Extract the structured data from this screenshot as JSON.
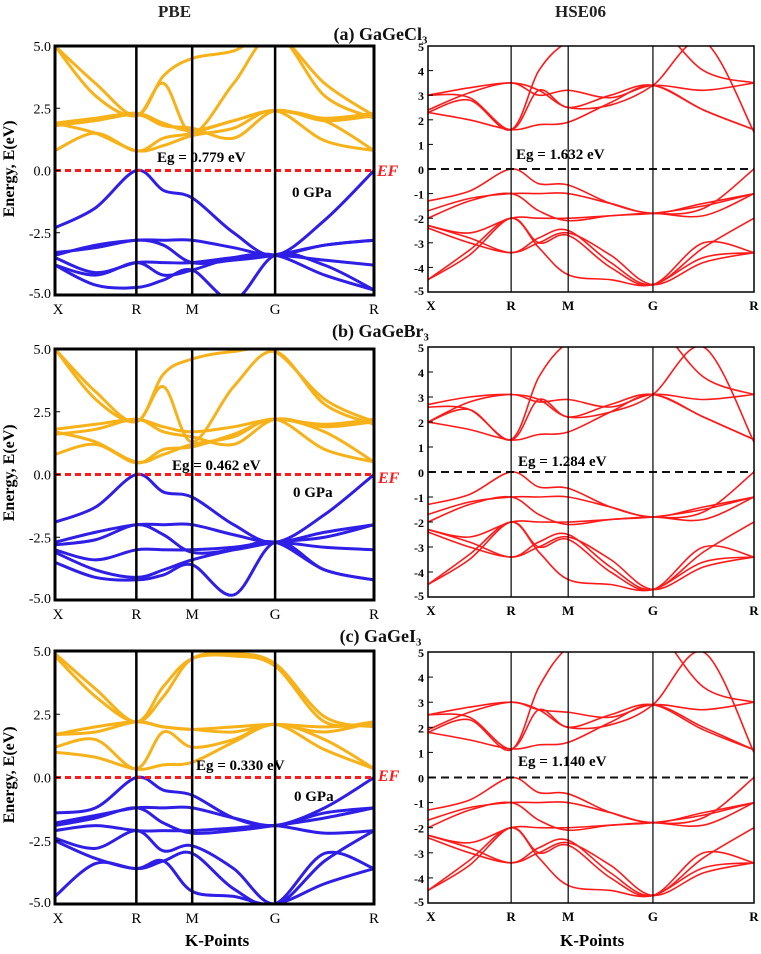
{
  "headers": {
    "pbe": "PBE",
    "hse": "HSE06"
  },
  "subtitles": [
    "(a) GaGeCl₃",
    "(b) GaGeBr₃",
    "(c) GaGeI₃"
  ],
  "ylabel": "Energy, E(eV)",
  "xlabel": "K-Points",
  "colors": {
    "pbe_cb": "#f7b21a",
    "pbe_vb": "#2f1fe6",
    "hse": "#ff1a1a",
    "fermi_pbe": "#ff1a1a",
    "fermi_hse": "#111111"
  },
  "chart_data": [
    {
      "id": "a-pbe",
      "type": "line",
      "method": "PBE",
      "ylim": [
        -5,
        5
      ],
      "yticks": [
        "5.0",
        "2.5",
        "0.0",
        "-2.5",
        "-5.0"
      ],
      "ytick_values": [
        5,
        2.5,
        0,
        -2.5,
        -5
      ],
      "kpoints": [
        "X",
        "R",
        "M",
        "G",
        "R"
      ],
      "kpos": [
        0,
        0.255,
        0.43,
        0.69,
        1
      ],
      "k": [
        0,
        0.127,
        0.255,
        0.34,
        0.43,
        0.56,
        0.69,
        0.845,
        1
      ],
      "gap_label": "Eg = 0.779 eV",
      "pressure": "0 GPa",
      "fermi_label": "EF",
      "conduction": [
        [
          0.8,
          1.5,
          0.78,
          1.3,
          1.5,
          2.0,
          2.4,
          2.0,
          0.8
        ],
        [
          1.9,
          1.5,
          0.8,
          1.0,
          1.4,
          1.7,
          2.4,
          1.2,
          0.8
        ],
        [
          1.9,
          2.1,
          2.3,
          1.9,
          1.6,
          2.0,
          2.4,
          2.1,
          2.3
        ],
        [
          1.8,
          2.0,
          2.25,
          1.8,
          1.7,
          1.3,
          2.4,
          2.0,
          2.2
        ],
        [
          5.0,
          3.5,
          2.2,
          3.8,
          4.5,
          4.8,
          5.5,
          3.5,
          2.2
        ],
        [
          5.0,
          3.0,
          2.2,
          3.5,
          1.5,
          3.5,
          5.5,
          3.0,
          2.1
        ]
      ],
      "valence": [
        [
          -2.3,
          -1.5,
          0,
          -0.8,
          -1.1,
          -2.5,
          -3.4,
          -2.0,
          0
        ],
        [
          -3.4,
          -3.0,
          -2.8,
          -2.8,
          -2.8,
          -3.1,
          -3.4,
          -3.0,
          -2.8
        ],
        [
          -3.3,
          -3.1,
          -2.8,
          -3.0,
          -3.7,
          -3.6,
          -3.4,
          -3.0,
          -2.8
        ],
        [
          -3.5,
          -4.1,
          -3.7,
          -3.7,
          -3.7,
          -3.5,
          -3.4,
          -3.6,
          -3.8
        ],
        [
          -3.8,
          -4.2,
          -3.7,
          -4.2,
          -4.0,
          -3.5,
          -3.4,
          -4.2,
          -4.8
        ],
        [
          -3.8,
          -4.6,
          -4.7,
          -4.4,
          -4.0,
          -5.2,
          -3.4,
          -3.8,
          -4.8
        ]
      ]
    },
    {
      "id": "a-hse",
      "type": "line",
      "method": "HSE06",
      "ylim": [
        -5,
        5
      ],
      "yticks": [
        "5",
        "4",
        "3",
        "2",
        "1",
        "0",
        "-1",
        "-2",
        "-3",
        "-4",
        "-5"
      ],
      "ytick_values": [
        5,
        4,
        3,
        2,
        1,
        0,
        -1,
        -2,
        -3,
        -4,
        -5
      ],
      "kpoints": [
        "X",
        "R",
        "M",
        "G",
        "R"
      ],
      "kpos": [
        0,
        0.255,
        0.43,
        0.69,
        1
      ],
      "k": [
        0,
        0.127,
        0.255,
        0.34,
        0.43,
        0.56,
        0.69,
        0.845,
        1
      ],
      "gap_label": "Eg = 1.632 eV",
      "conduction": [
        [
          2.3,
          2.0,
          1.6,
          1.8,
          1.9,
          2.7,
          3.4,
          2.4,
          1.6
        ],
        [
          3.0,
          2.9,
          1.6,
          3.2,
          2.5,
          3.0,
          3.4,
          2.4,
          1.6
        ],
        [
          2.4,
          3.1,
          3.5,
          3.0,
          3.2,
          2.9,
          3.4,
          3.2,
          3.5
        ],
        [
          3.0,
          3.3,
          3.5,
          3.2,
          2.5,
          2.6,
          3.4,
          5.2,
          1.5
        ],
        [
          2.3,
          2.8,
          1.6,
          4.0,
          5.2,
          6.0,
          6.0,
          4.0,
          3.5
        ]
      ],
      "valence": [
        [
          -1.3,
          -0.9,
          0,
          -0.6,
          -0.65,
          -1.4,
          -1.8,
          -1.6,
          0
        ],
        [
          -1.7,
          -1.2,
          -1.0,
          -1.0,
          -1.0,
          -1.4,
          -1.8,
          -1.4,
          -1.0
        ],
        [
          -2.0,
          -1.3,
          -1.0,
          -1.7,
          -2.1,
          -1.9,
          -1.8,
          -1.5,
          -1.0
        ],
        [
          -2.3,
          -2.6,
          -2.0,
          -2.0,
          -2.0,
          -1.9,
          -1.8,
          -1.9,
          -1.0
        ],
        [
          -2.3,
          -2.8,
          -3.4,
          -2.8,
          -2.5,
          -3.8,
          -4.7,
          -3.2,
          -2.0
        ],
        [
          -4.5,
          -3.5,
          -2.0,
          -3.0,
          -2.7,
          -4.0,
          -4.7,
          -3.0,
          -3.4
        ],
        [
          -4.5,
          -3.3,
          -2.0,
          -3.2,
          -4.3,
          -4.5,
          -4.7,
          -3.6,
          -3.4
        ],
        [
          -2.4,
          -3.0,
          -3.4,
          -3.0,
          -2.6,
          -3.5,
          -4.7,
          -3.8,
          -3.4
        ]
      ]
    },
    {
      "id": "b-pbe",
      "type": "line",
      "method": "PBE",
      "ylim": [
        -5,
        5
      ],
      "yticks": [
        "5.0",
        "2.5",
        "0.0",
        "-2.5",
        "-5.0"
      ],
      "ytick_values": [
        5,
        2.5,
        0,
        -2.5,
        -5
      ],
      "kpoints": [
        "X",
        "R",
        "M",
        "G",
        "R"
      ],
      "kpos": [
        0,
        0.255,
        0.43,
        0.69,
        1
      ],
      "k": [
        0,
        0.127,
        0.255,
        0.34,
        0.43,
        0.56,
        0.69,
        0.845,
        1
      ],
      "gap_label": "Eg = 0.462 eV",
      "pressure": "0 GPa",
      "fermi_label": "EF",
      "conduction": [
        [
          0.8,
          1.2,
          0.46,
          1.0,
          1.1,
          1.6,
          2.2,
          1.7,
          0.5
        ],
        [
          1.7,
          1.3,
          0.5,
          0.8,
          1.2,
          1.5,
          2.2,
          1.0,
          0.5
        ],
        [
          1.8,
          2.0,
          2.2,
          1.9,
          1.7,
          1.9,
          2.2,
          2.0,
          2.2
        ],
        [
          1.6,
          1.8,
          2.2,
          1.7,
          1.5,
          1.2,
          2.2,
          1.9,
          2.1
        ],
        [
          5.0,
          3.3,
          2.1,
          4.0,
          4.6,
          4.9,
          4.9,
          3.0,
          2.1
        ],
        [
          5.0,
          3.0,
          2.1,
          3.5,
          1.3,
          3.5,
          4.9,
          2.8,
          2.0
        ]
      ],
      "valence": [
        [
          -1.9,
          -1.3,
          0,
          -0.7,
          -0.9,
          -2.0,
          -2.7,
          -1.6,
          0
        ],
        [
          -2.7,
          -2.3,
          -2.0,
          -2.0,
          -2.0,
          -2.4,
          -2.7,
          -2.3,
          -2.0
        ],
        [
          -2.8,
          -2.6,
          -2.0,
          -2.4,
          -3.1,
          -3.0,
          -2.7,
          -2.5,
          -2.0
        ],
        [
          -3.0,
          -3.4,
          -3.0,
          -3.0,
          -3.0,
          -2.9,
          -2.7,
          -2.9,
          -3.0
        ],
        [
          -3.1,
          -3.8,
          -4.1,
          -3.8,
          -3.4,
          -3.0,
          -2.7,
          -3.8,
          -4.2
        ],
        [
          -3.5,
          -4.1,
          -4.2,
          -4.0,
          -3.6,
          -4.8,
          -2.7,
          -3.8,
          -4.2
        ]
      ]
    },
    {
      "id": "b-hse",
      "type": "line",
      "method": "HSE06",
      "ylim": [
        -5,
        5
      ],
      "yticks": [
        "5",
        "4",
        "3",
        "2",
        "1",
        "0",
        "-1",
        "-2",
        "-3",
        "-4",
        "-5"
      ],
      "ytick_values": [
        5,
        4,
        3,
        2,
        1,
        0,
        -1,
        -2,
        -3,
        -4,
        -5
      ],
      "kpoints": [
        "X",
        "R",
        "M",
        "G",
        "R"
      ],
      "kpos": [
        0,
        0.255,
        0.43,
        0.69,
        1
      ],
      "k": [
        0,
        0.127,
        0.255,
        0.34,
        0.43,
        0.56,
        0.69,
        0.845,
        1
      ],
      "gap_label": "Eg = 1.284 eV",
      "conduction": [
        [
          2.0,
          1.7,
          1.28,
          1.5,
          1.6,
          2.4,
          3.1,
          2.2,
          1.3
        ],
        [
          2.6,
          2.5,
          1.28,
          2.9,
          2.2,
          2.7,
          3.1,
          2.2,
          1.3
        ],
        [
          2.0,
          2.8,
          3.1,
          2.8,
          2.9,
          2.6,
          3.1,
          2.9,
          3.1
        ],
        [
          2.7,
          3.0,
          3.1,
          2.9,
          2.2,
          2.4,
          3.1,
          5.0,
          1.2
        ],
        [
          2.0,
          2.5,
          1.3,
          3.8,
          5.2,
          6.0,
          6.0,
          3.8,
          3.1
        ]
      ],
      "valence": [
        [
          -1.3,
          -0.9,
          0,
          -0.6,
          -0.65,
          -1.4,
          -1.8,
          -1.6,
          0
        ],
        [
          -1.7,
          -1.2,
          -1.0,
          -1.0,
          -1.0,
          -1.4,
          -1.8,
          -1.4,
          -1.0
        ],
        [
          -2.0,
          -1.3,
          -1.0,
          -1.7,
          -2.1,
          -1.9,
          -1.8,
          -1.5,
          -1.0
        ],
        [
          -2.3,
          -2.6,
          -2.0,
          -2.0,
          -2.0,
          -1.9,
          -1.8,
          -1.9,
          -1.0
        ],
        [
          -2.3,
          -2.8,
          -3.4,
          -2.8,
          -2.5,
          -3.8,
          -4.7,
          -3.2,
          -2.0
        ],
        [
          -4.5,
          -3.5,
          -2.0,
          -3.0,
          -2.7,
          -4.0,
          -4.7,
          -3.0,
          -3.4
        ],
        [
          -4.5,
          -3.3,
          -2.0,
          -3.2,
          -4.3,
          -4.5,
          -4.7,
          -3.6,
          -3.4
        ],
        [
          -2.4,
          -3.0,
          -3.4,
          -3.0,
          -2.6,
          -3.5,
          -4.7,
          -3.8,
          -3.4
        ]
      ]
    },
    {
      "id": "c-pbe",
      "type": "line",
      "method": "PBE",
      "ylim": [
        -5,
        5
      ],
      "yticks": [
        "5.0",
        "2.5",
        "0.0",
        "-2.5",
        "-5.0"
      ],
      "ytick_values": [
        5,
        2.5,
        0,
        -2.5,
        -5
      ],
      "kpoints": [
        "X",
        "R",
        "M",
        "G",
        "R"
      ],
      "kpos": [
        0,
        0.255,
        0.43,
        0.69,
        1
      ],
      "k": [
        0,
        0.127,
        0.255,
        0.34,
        0.43,
        0.56,
        0.69,
        0.845,
        1
      ],
      "gap_label": "Eg = 0.330 eV",
      "pressure": "0 GPa",
      "fermi_label": "EF",
      "conduction": [
        [
          1.0,
          0.8,
          0.33,
          0.5,
          0.6,
          1.4,
          2.1,
          1.5,
          0.35
        ],
        [
          1.2,
          1.5,
          0.35,
          1.8,
          1.2,
          1.5,
          2.1,
          1.1,
          0.35
        ],
        [
          1.7,
          2.0,
          2.2,
          2.0,
          1.9,
          1.8,
          2.1,
          1.8,
          2.2
        ],
        [
          1.7,
          1.8,
          2.2,
          2.0,
          1.9,
          2.0,
          2.1,
          2.0,
          2.1
        ],
        [
          4.9,
          3.5,
          2.2,
          3.6,
          4.7,
          4.8,
          4.4,
          2.2,
          2.2
        ],
        [
          4.8,
          3.2,
          2.2,
          3.2,
          4.7,
          4.9,
          4.5,
          2.4,
          2.0
        ]
      ],
      "valence": [
        [
          -1.4,
          -1.2,
          0,
          -0.5,
          -0.7,
          -1.6,
          -1.9,
          -1.2,
          0
        ],
        [
          -1.8,
          -1.5,
          -1.2,
          -1.2,
          -1.2,
          -1.6,
          -1.9,
          -1.4,
          -1.2
        ],
        [
          -1.9,
          -1.6,
          -1.2,
          -1.8,
          -2.2,
          -2.1,
          -1.9,
          -1.6,
          -1.2
        ],
        [
          -2.1,
          -1.9,
          -2.1,
          -2.1,
          -2.1,
          -2.0,
          -1.9,
          -2.2,
          -2.1
        ],
        [
          -2.4,
          -2.8,
          -2.1,
          -2.9,
          -2.7,
          -3.6,
          -5.0,
          -3.3,
          -2.1
        ],
        [
          -2.5,
          -3.2,
          -3.6,
          -3.3,
          -3.0,
          -4.4,
          -5.0,
          -3.0,
          -3.6
        ],
        [
          -4.7,
          -3.4,
          -3.6,
          -3.3,
          -4.5,
          -4.7,
          -5.0,
          -4.2,
          -3.6
        ]
      ]
    },
    {
      "id": "c-hse",
      "type": "line",
      "method": "HSE06",
      "ylim": [
        -5,
        5
      ],
      "yticks": [
        "5",
        "4",
        "3",
        "2",
        "1",
        "0",
        "-1",
        "-2",
        "-3",
        "-4",
        "-5"
      ],
      "ytick_values": [
        5,
        4,
        3,
        2,
        1,
        0,
        -1,
        -2,
        -3,
        -4,
        -5
      ],
      "kpoints": [
        "X",
        "R",
        "M",
        "G",
        "R"
      ],
      "kpos": [
        0,
        0.255,
        0.43,
        0.69,
        1
      ],
      "k": [
        0,
        0.127,
        0.255,
        0.34,
        0.43,
        0.56,
        0.69,
        0.845,
        1
      ],
      "gap_label": "Eg = 1.140 eV",
      "conduction": [
        [
          1.8,
          1.5,
          1.14,
          1.3,
          1.4,
          2.2,
          2.9,
          2.0,
          1.1
        ],
        [
          2.5,
          2.4,
          1.14,
          2.7,
          2.0,
          2.5,
          2.9,
          1.9,
          1.1
        ],
        [
          1.9,
          2.6,
          3.0,
          2.7,
          2.6,
          2.4,
          2.9,
          2.7,
          3.0
        ],
        [
          2.5,
          2.8,
          3.0,
          2.7,
          2.0,
          2.1,
          2.9,
          5.0,
          1.0
        ],
        [
          1.8,
          2.3,
          1.1,
          3.6,
          5.2,
          6.0,
          6.0,
          3.6,
          3.0
        ]
      ],
      "valence": [
        [
          -1.3,
          -0.9,
          0,
          -0.6,
          -0.65,
          -1.4,
          -1.8,
          -1.6,
          0
        ],
        [
          -1.7,
          -1.2,
          -1.0,
          -1.0,
          -1.0,
          -1.4,
          -1.8,
          -1.4,
          -1.0
        ],
        [
          -2.0,
          -1.3,
          -1.0,
          -1.7,
          -2.1,
          -1.9,
          -1.8,
          -1.5,
          -1.0
        ],
        [
          -2.3,
          -2.6,
          -2.0,
          -2.0,
          -2.0,
          -1.9,
          -1.8,
          -1.9,
          -1.0
        ],
        [
          -2.3,
          -2.8,
          -3.4,
          -2.8,
          -2.5,
          -3.8,
          -4.7,
          -3.2,
          -2.0
        ],
        [
          -4.5,
          -3.5,
          -2.0,
          -3.0,
          -2.7,
          -4.0,
          -4.7,
          -3.0,
          -3.4
        ],
        [
          -4.5,
          -3.3,
          -2.0,
          -3.2,
          -4.3,
          -4.5,
          -4.7,
          -3.6,
          -3.4
        ],
        [
          -2.4,
          -3.0,
          -3.4,
          -3.0,
          -2.6,
          -3.5,
          -4.7,
          -3.8,
          -3.4
        ]
      ]
    }
  ]
}
